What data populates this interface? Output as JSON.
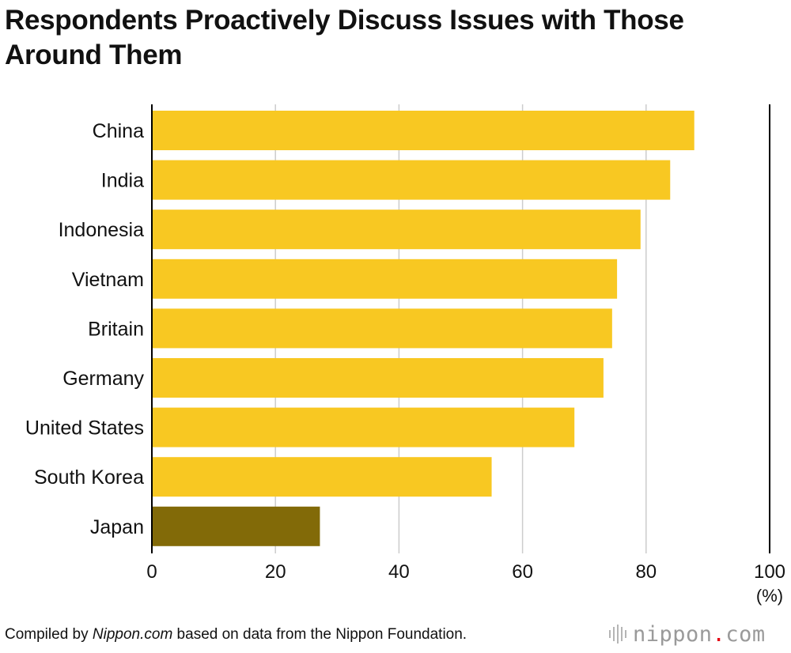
{
  "chart_data": {
    "type": "bar",
    "orientation": "horizontal",
    "title": "Respondents Proactively Discuss Issues with Those Around Them",
    "categories": [
      "China",
      "India",
      "Indonesia",
      "Vietnam",
      "Britain",
      "Germany",
      "United States",
      "South Korea",
      "Japan"
    ],
    "values": [
      87.8,
      83.9,
      79.1,
      75.3,
      74.5,
      73.1,
      68.4,
      55.0,
      27.2
    ],
    "xlim": [
      0,
      100
    ],
    "xticks": [
      "0",
      "20",
      "40",
      "60",
      "80",
      "100"
    ],
    "xunit": "(%)",
    "grid": true,
    "highlight_category": "Japan",
    "colors": {
      "bar": "#f8c822",
      "highlight": "#826a08",
      "grid": "#cccccc",
      "axis": "#000000"
    }
  },
  "footer": {
    "prefix": "Compiled by ",
    "source_italic": "Nippon.com",
    "suffix": " based on data from the Nippon Foundation."
  },
  "brand": {
    "name": "nippon",
    "dot": ".",
    "tld": "com"
  }
}
